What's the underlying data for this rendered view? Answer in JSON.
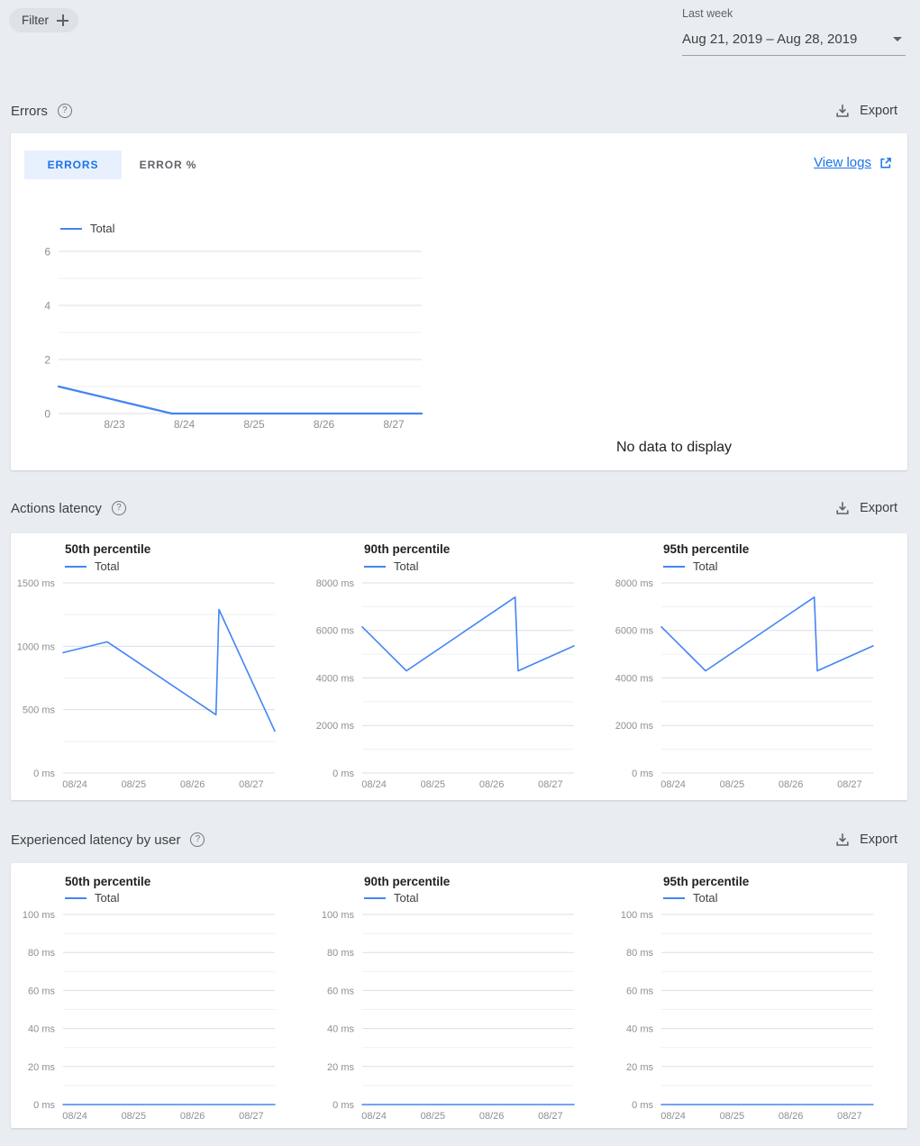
{
  "toolbar": {
    "filter_label": "Filter"
  },
  "date_range": {
    "preset_label": "Last week",
    "value": "Aug 21, 2019 – Aug 28, 2019"
  },
  "labels": {
    "export": "Export"
  },
  "icons": {
    "filter_add": "plus-icon",
    "help": "help-circle-icon",
    "export": "download-icon",
    "date_caret": "chevron-down-icon",
    "view_logs": "external-link-icon"
  },
  "colors": {
    "line_blue": "#4285f4",
    "link_blue": "#1a73e8",
    "active_tab_bg": "#e8f0fe",
    "page_bg": "#e9edf1"
  },
  "sections": {
    "errors": {
      "title": "Errors",
      "help_glyph": "?",
      "tabs": [
        {
          "label": "ERRORS",
          "active": true
        },
        {
          "label": "ERROR %",
          "active": false
        }
      ],
      "view_logs_label": "View logs",
      "no_data_text": "No data to display"
    },
    "actions_latency": {
      "title": "Actions latency",
      "help_glyph": "?"
    },
    "experienced_latency": {
      "title": "Experienced latency by user",
      "help_glyph": "?"
    }
  },
  "chart_data": [
    {
      "type": "line",
      "title": "",
      "xlabel": "",
      "ylabel": "",
      "x_domain": [
        22.2,
        27.4
      ],
      "x_ticks": [
        {
          "x": 23,
          "label": "8/23"
        },
        {
          "x": 24,
          "label": "8/24"
        },
        {
          "x": 25,
          "label": "8/25"
        },
        {
          "x": 26,
          "label": "8/26"
        },
        {
          "x": 27,
          "label": "8/27"
        }
      ],
      "ylim": [
        0,
        6
      ],
      "y_ticks": [
        {
          "v": 0,
          "label": "0"
        },
        {
          "v": 2,
          "label": "2"
        },
        {
          "v": 4,
          "label": "4"
        },
        {
          "v": 6,
          "label": "6"
        }
      ],
      "y_grid_step": 1,
      "grid": true,
      "legend_position": "top-left",
      "series": [
        {
          "name": "Total",
          "color": "#4285f4",
          "points": [
            [
              22.2,
              1
            ],
            [
              23.82,
              0
            ],
            [
              27.4,
              0
            ]
          ]
        }
      ]
    },
    {
      "type": "line",
      "title": "50th percentile",
      "x_domain": [
        23.8,
        27.4
      ],
      "x_ticks": [
        {
          "x": 24,
          "label": "08/24"
        },
        {
          "x": 25,
          "label": "08/25"
        },
        {
          "x": 26,
          "label": "08/26"
        },
        {
          "x": 27,
          "label": "08/27"
        }
      ],
      "ylim": [
        0,
        1500
      ],
      "y_ticks": [
        {
          "v": 0,
          "label": "0 ms"
        },
        {
          "v": 500,
          "label": "500 ms"
        },
        {
          "v": 1000,
          "label": "1000 ms"
        },
        {
          "v": 1500,
          "label": "1500 ms"
        }
      ],
      "y_grid_step": 250,
      "grid": true,
      "legend_position": "top-left",
      "series": [
        {
          "name": "Total",
          "color": "#4285f4",
          "points": [
            [
              23.8,
              950
            ],
            [
              24.55,
              1035
            ],
            [
              26.4,
              460
            ],
            [
              26.45,
              1290
            ],
            [
              27.4,
              330
            ]
          ]
        }
      ]
    },
    {
      "type": "line",
      "title": "90th percentile",
      "x_domain": [
        23.8,
        27.4
      ],
      "x_ticks": [
        {
          "x": 24,
          "label": "08/24"
        },
        {
          "x": 25,
          "label": "08/25"
        },
        {
          "x": 26,
          "label": "08/26"
        },
        {
          "x": 27,
          "label": "08/27"
        }
      ],
      "ylim": [
        0,
        8000
      ],
      "y_ticks": [
        {
          "v": 0,
          "label": "0 ms"
        },
        {
          "v": 2000,
          "label": "2000 ms"
        },
        {
          "v": 4000,
          "label": "4000 ms"
        },
        {
          "v": 6000,
          "label": "6000 ms"
        },
        {
          "v": 8000,
          "label": "8000 ms"
        }
      ],
      "y_grid_step": 1000,
      "grid": true,
      "legend_position": "top-left",
      "series": [
        {
          "name": "Total",
          "color": "#4285f4",
          "points": [
            [
              23.8,
              6150
            ],
            [
              24.55,
              4300
            ],
            [
              26.4,
              7400
            ],
            [
              26.45,
              4300
            ],
            [
              27.4,
              5350
            ]
          ]
        }
      ]
    },
    {
      "type": "line",
      "title": "95th percentile",
      "x_domain": [
        23.8,
        27.4
      ],
      "x_ticks": [
        {
          "x": 24,
          "label": "08/24"
        },
        {
          "x": 25,
          "label": "08/25"
        },
        {
          "x": 26,
          "label": "08/26"
        },
        {
          "x": 27,
          "label": "08/27"
        }
      ],
      "ylim": [
        0,
        8000
      ],
      "y_ticks": [
        {
          "v": 0,
          "label": "0 ms"
        },
        {
          "v": 2000,
          "label": "2000 ms"
        },
        {
          "v": 4000,
          "label": "4000 ms"
        },
        {
          "v": 6000,
          "label": "6000 ms"
        },
        {
          "v": 8000,
          "label": "8000 ms"
        }
      ],
      "y_grid_step": 1000,
      "grid": true,
      "legend_position": "top-left",
      "series": [
        {
          "name": "Total",
          "color": "#4285f4",
          "points": [
            [
              23.8,
              6150
            ],
            [
              24.55,
              4300
            ],
            [
              26.4,
              7400
            ],
            [
              26.45,
              4300
            ],
            [
              27.4,
              5350
            ]
          ]
        }
      ]
    },
    {
      "type": "line",
      "title": "50th percentile",
      "x_domain": [
        23.8,
        27.4
      ],
      "x_ticks": [
        {
          "x": 24,
          "label": "08/24"
        },
        {
          "x": 25,
          "label": "08/25"
        },
        {
          "x": 26,
          "label": "08/26"
        },
        {
          "x": 27,
          "label": "08/27"
        }
      ],
      "ylim": [
        0,
        100
      ],
      "y_ticks": [
        {
          "v": 0,
          "label": "0 ms"
        },
        {
          "v": 20,
          "label": "20 ms"
        },
        {
          "v": 40,
          "label": "40 ms"
        },
        {
          "v": 60,
          "label": "60 ms"
        },
        {
          "v": 80,
          "label": "80 ms"
        },
        {
          "v": 100,
          "label": "100 ms"
        }
      ],
      "y_grid_step": 10,
      "grid": true,
      "legend_position": "top-left",
      "series": [
        {
          "name": "Total",
          "color": "#4285f4",
          "points": [
            [
              23.8,
              0
            ],
            [
              27.4,
              0
            ]
          ]
        }
      ]
    },
    {
      "type": "line",
      "title": "90th percentile",
      "x_domain": [
        23.8,
        27.4
      ],
      "x_ticks": [
        {
          "x": 24,
          "label": "08/24"
        },
        {
          "x": 25,
          "label": "08/25"
        },
        {
          "x": 26,
          "label": "08/26"
        },
        {
          "x": 27,
          "label": "08/27"
        }
      ],
      "ylim": [
        0,
        100
      ],
      "y_ticks": [
        {
          "v": 0,
          "label": "0 ms"
        },
        {
          "v": 20,
          "label": "20 ms"
        },
        {
          "v": 40,
          "label": "40 ms"
        },
        {
          "v": 60,
          "label": "60 ms"
        },
        {
          "v": 80,
          "label": "80 ms"
        },
        {
          "v": 100,
          "label": "100 ms"
        }
      ],
      "y_grid_step": 10,
      "grid": true,
      "legend_position": "top-left",
      "series": [
        {
          "name": "Total",
          "color": "#4285f4",
          "points": [
            [
              23.8,
              0
            ],
            [
              27.4,
              0
            ]
          ]
        }
      ]
    },
    {
      "type": "line",
      "title": "95th percentile",
      "x_domain": [
        23.8,
        27.4
      ],
      "x_ticks": [
        {
          "x": 24,
          "label": "08/24"
        },
        {
          "x": 25,
          "label": "08/25"
        },
        {
          "x": 26,
          "label": "08/26"
        },
        {
          "x": 27,
          "label": "08/27"
        }
      ],
      "ylim": [
        0,
        100
      ],
      "y_ticks": [
        {
          "v": 0,
          "label": "0 ms"
        },
        {
          "v": 20,
          "label": "20 ms"
        },
        {
          "v": 40,
          "label": "40 ms"
        },
        {
          "v": 60,
          "label": "60 ms"
        },
        {
          "v": 80,
          "label": "80 ms"
        },
        {
          "v": 100,
          "label": "100 ms"
        }
      ],
      "y_grid_step": 10,
      "grid": true,
      "legend_position": "top-left",
      "series": [
        {
          "name": "Total",
          "color": "#4285f4",
          "points": [
            [
              23.8,
              0
            ],
            [
              27.4,
              0
            ]
          ]
        }
      ]
    }
  ]
}
